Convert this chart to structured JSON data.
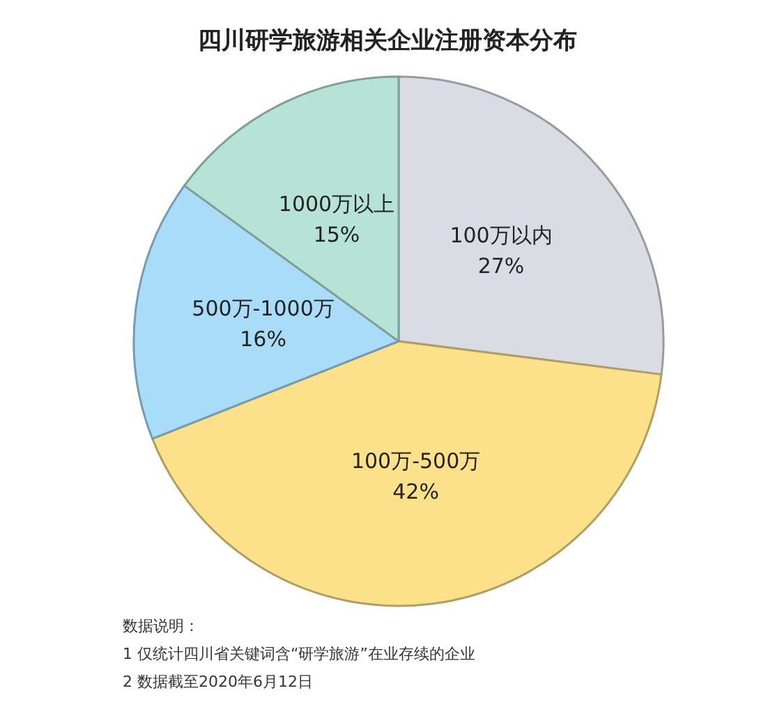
{
  "chart_data": {
    "type": "pie",
    "title": "四川研学旅游相关企业注册资本分布",
    "categories": [
      "100万以内",
      "100万-500万",
      "500万-1000万",
      "1000万以上"
    ],
    "values": [
      27,
      42,
      16,
      15
    ],
    "colors": [
      "#d9dde3",
      "#fde08a",
      "#a8dcf8",
      "#b7e3d6"
    ],
    "value_labels": [
      "27%",
      "42%",
      "16%",
      "15%"
    ],
    "legend": false,
    "annotations": [
      "数据说明：",
      "1 仅统计四川省关键词含“研学旅游”在业存续的企业",
      "2 数据截至2020年6月12日"
    ]
  }
}
